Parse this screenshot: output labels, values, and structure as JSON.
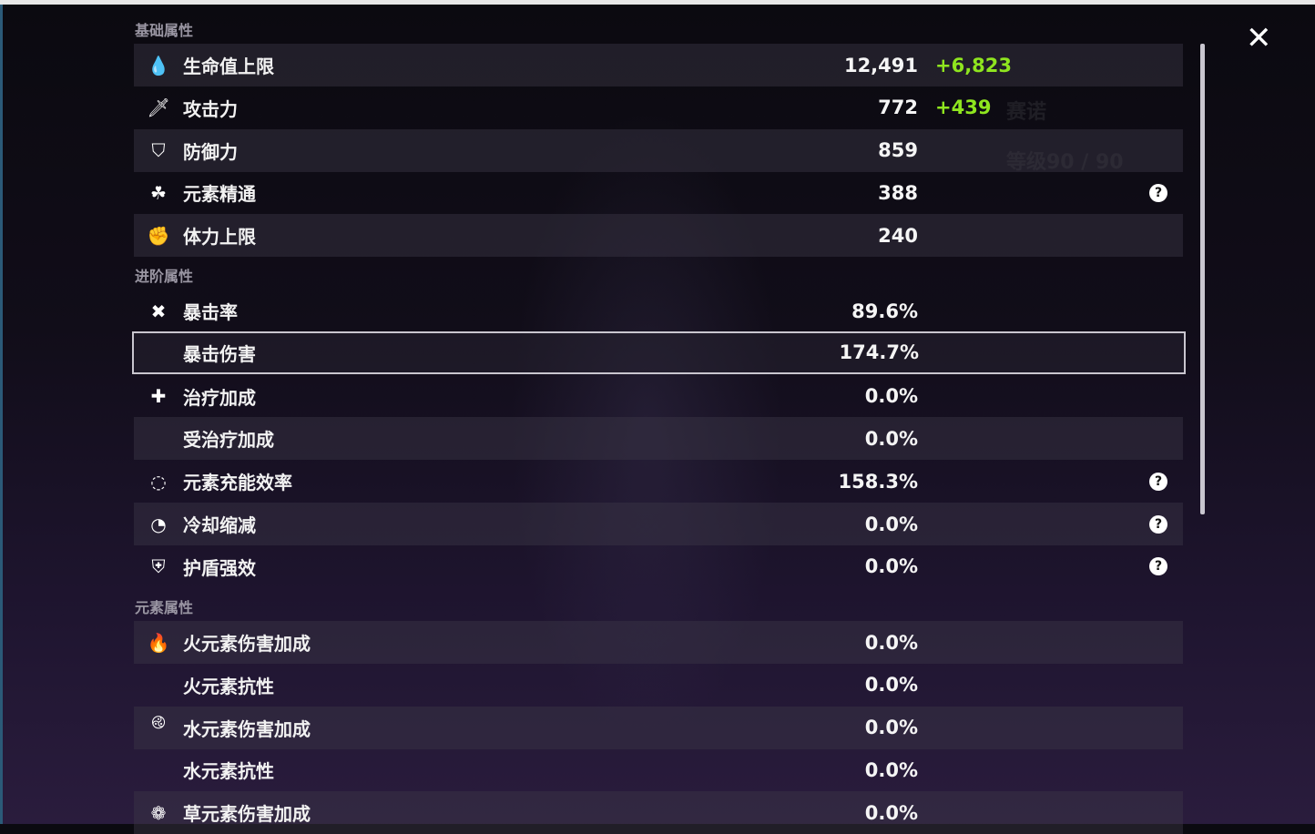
{
  "sections": [
    {
      "title": "基础属性",
      "rows": [
        {
          "icon": "hp-drop-icon",
          "glyph": "💧",
          "label": "生命值上限",
          "value": "12,491",
          "bonus": "+6,823"
        },
        {
          "icon": "sword-icon",
          "glyph": "🗡",
          "label": "攻击力",
          "value": "772",
          "bonus": "+439"
        },
        {
          "icon": "shield-icon",
          "glyph": "⛉",
          "label": "防御力",
          "value": "859"
        },
        {
          "icon": "elemental-mastery-icon",
          "glyph": "☘",
          "label": "元素精通",
          "value": "388",
          "help": true
        },
        {
          "icon": "stamina-icon",
          "glyph": "✊",
          "label": "体力上限",
          "value": "240"
        }
      ]
    },
    {
      "title": "进阶属性",
      "rows": [
        {
          "icon": "crit-rate-icon",
          "glyph": "✖",
          "label": "暴击率",
          "value": "89.6%"
        },
        {
          "icon": "",
          "glyph": "",
          "label": "暴击伤害",
          "value": "174.7%",
          "selected": true
        },
        {
          "icon": "healing-cross-icon",
          "glyph": "✚",
          "label": "治疗加成",
          "value": "0.0%"
        },
        {
          "icon": "",
          "glyph": "",
          "label": "受治疗加成",
          "value": "0.0%"
        },
        {
          "icon": "energy-recharge-icon",
          "glyph": "◌",
          "label": "元素充能效率",
          "value": "158.3%",
          "help": true
        },
        {
          "icon": "cooldown-icon",
          "glyph": "◔",
          "label": "冷却缩减",
          "value": "0.0%",
          "help": true
        },
        {
          "icon": "shield-strength-icon",
          "glyph": "⛨",
          "label": "护盾强效",
          "value": "0.0%",
          "help": true
        }
      ]
    },
    {
      "title": "元素属性",
      "rows": [
        {
          "icon": "pyro-icon",
          "glyph": "🔥",
          "label": "火元素伤害加成",
          "value": "0.0%"
        },
        {
          "icon": "",
          "glyph": "",
          "label": "火元素抗性",
          "value": "0.0%"
        },
        {
          "icon": "hydro-icon",
          "glyph": "࿋",
          "label": "水元素伤害加成",
          "value": "0.0%"
        },
        {
          "icon": "",
          "glyph": "",
          "label": "水元素抗性",
          "value": "0.0%"
        },
        {
          "icon": "dendro-icon",
          "glyph": "❁",
          "label": "草元素伤害加成",
          "value": "0.0%"
        }
      ]
    }
  ],
  "help_glyph": "?",
  "close_glyph": "✕",
  "colors": {
    "bonus": "#8fe51f",
    "highlight_border": "#c9c6cf"
  }
}
